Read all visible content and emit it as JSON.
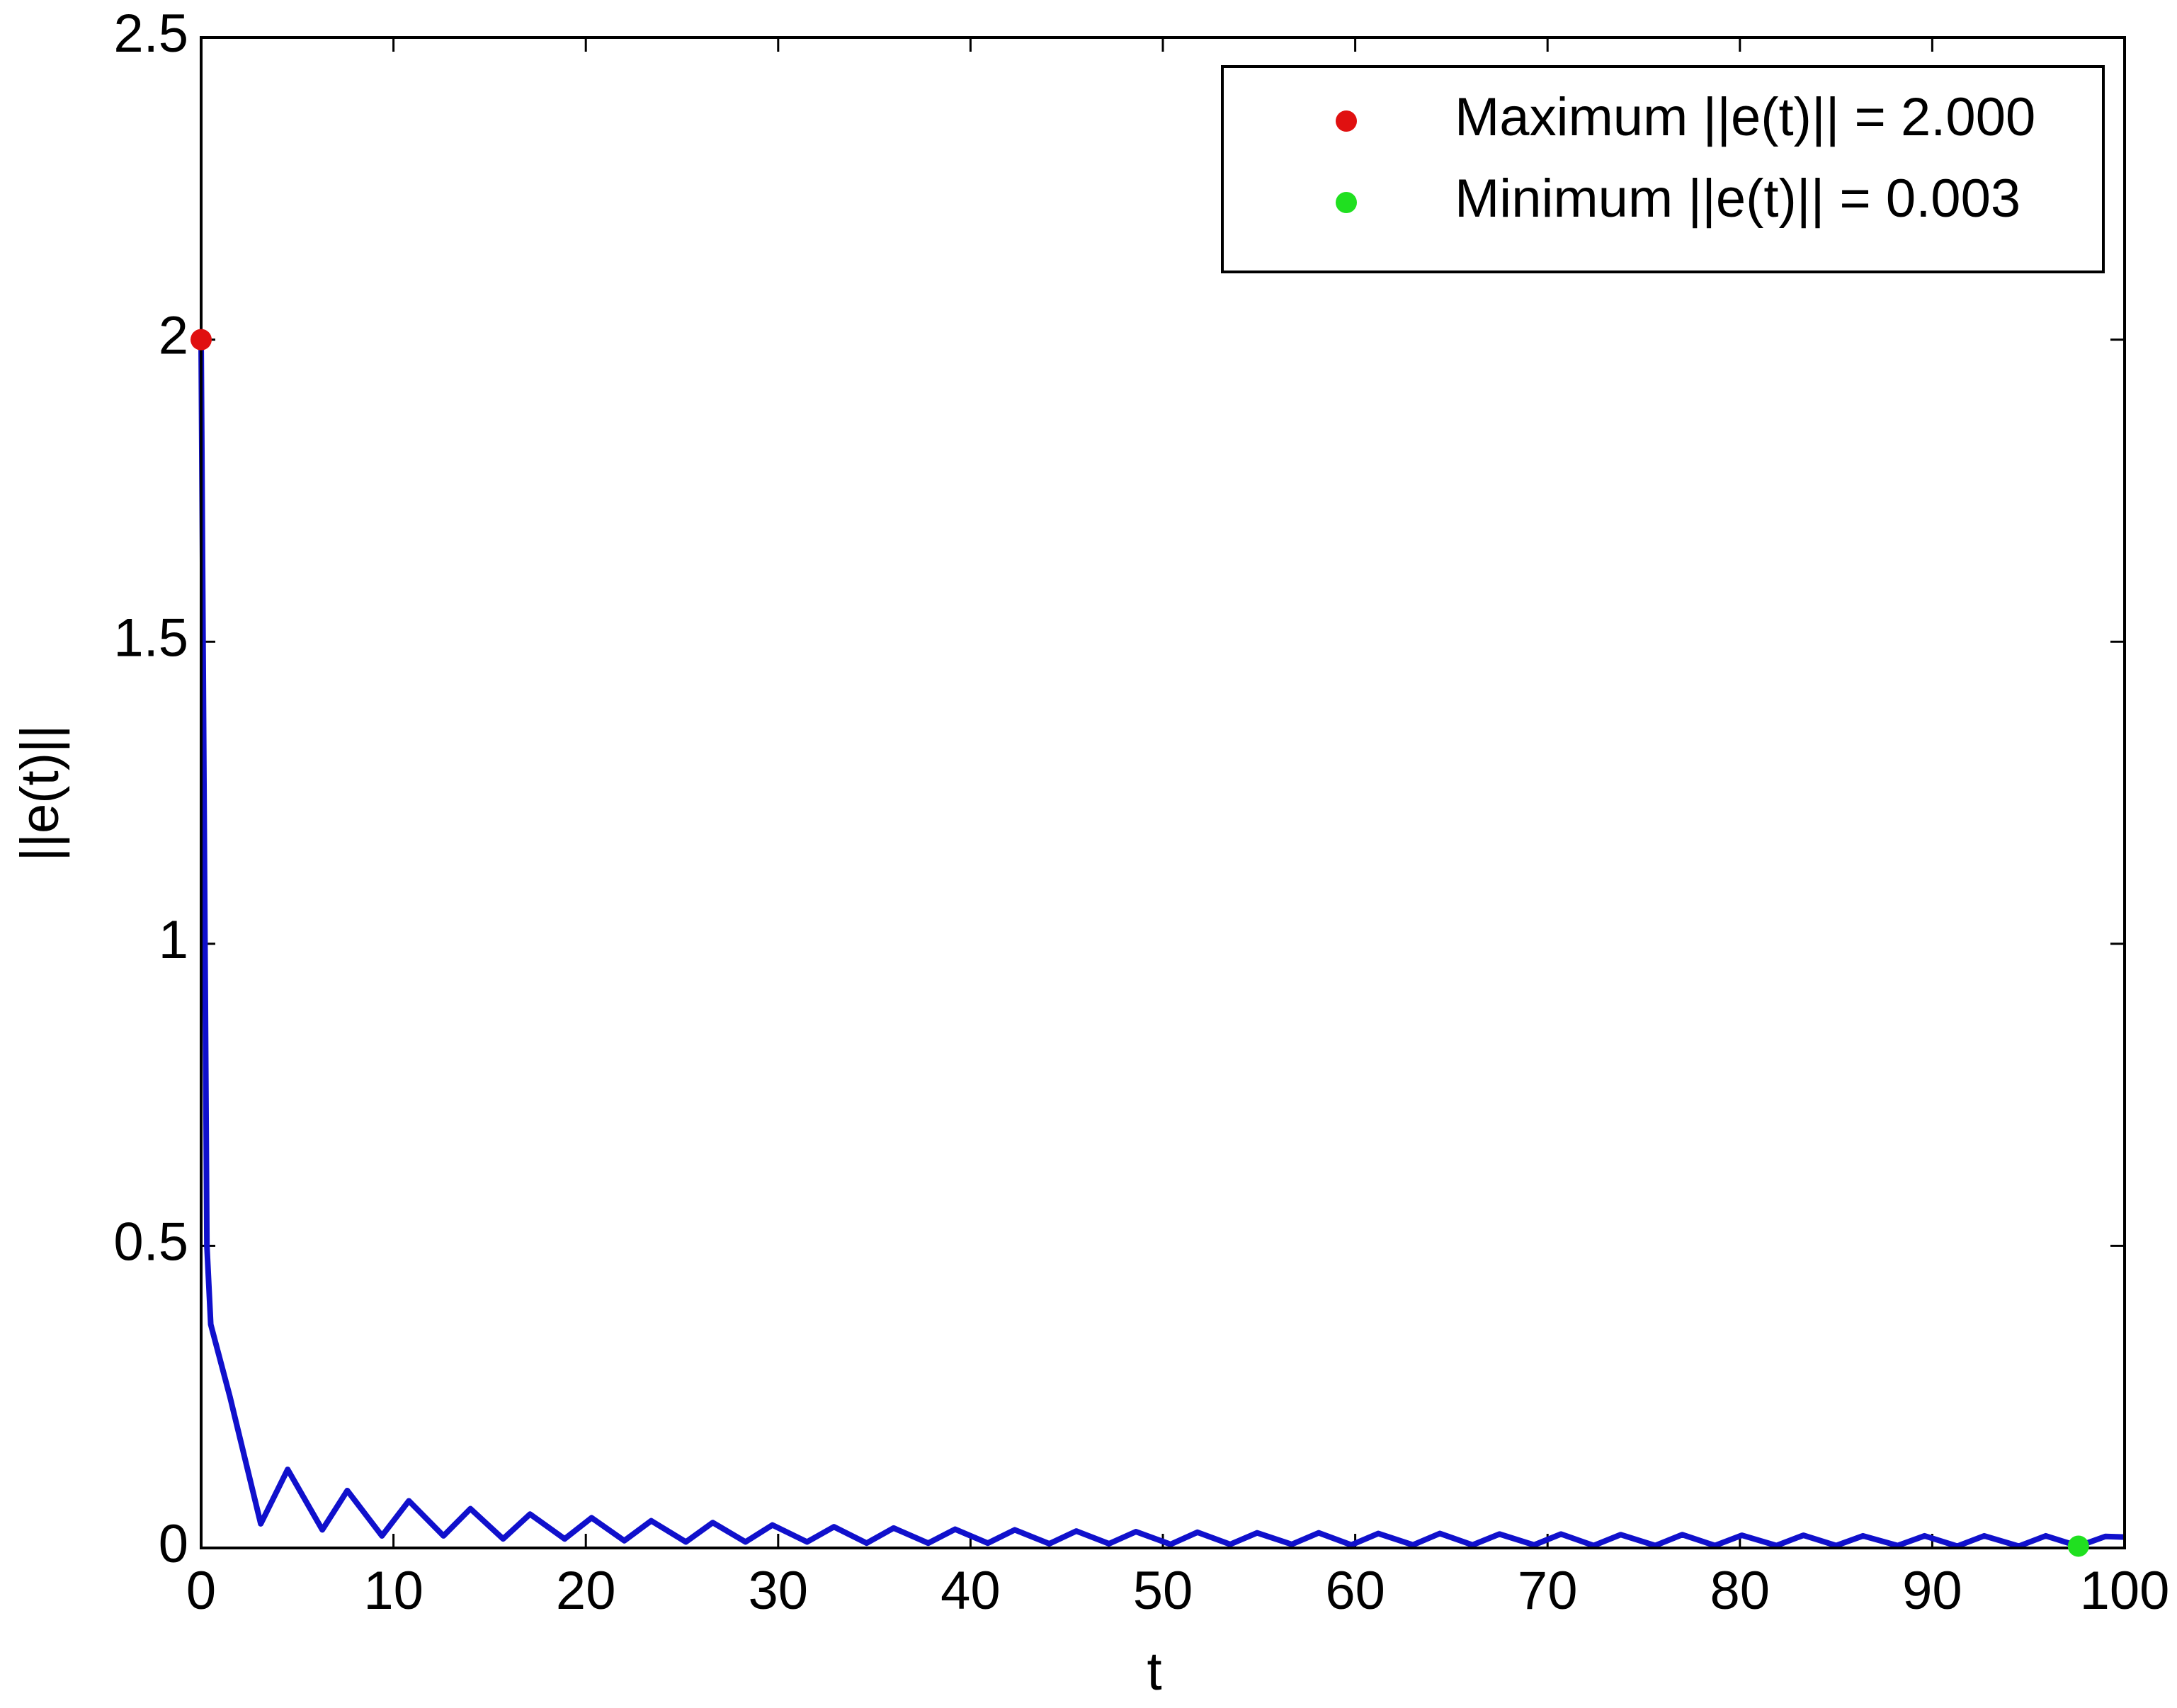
{
  "chart_data": {
    "type": "line",
    "xlabel": "t",
    "ylabel": "||e(t)||",
    "xlim": [
      0,
      100
    ],
    "ylim": [
      0,
      2.5
    ],
    "xticks": [
      0,
      10,
      20,
      30,
      40,
      50,
      60,
      70,
      80,
      90,
      100
    ],
    "yticks": [
      0,
      0.5,
      1,
      1.5,
      2,
      2.5
    ],
    "series": [
      {
        "color": "#1010cc",
        "x": [
          0,
          0.3,
          0.5,
          1.5,
          3.1,
          4.5,
          6.3,
          7.6,
          9.4,
          10.8,
          12.6,
          14.0,
          15.7,
          17.1,
          18.9,
          20.3,
          22.0,
          23.4,
          25.2,
          26.6,
          28.3,
          29.7,
          31.5,
          32.9,
          34.6,
          36.0,
          37.8,
          39.2,
          40.9,
          42.3,
          44.1,
          45.5,
          47.2,
          48.6,
          50.4,
          51.8,
          53.5,
          54.9,
          56.7,
          58.1,
          59.8,
          61.2,
          63.0,
          64.4,
          66.1,
          67.5,
          69.3,
          70.7,
          72.4,
          73.8,
          75.6,
          77.0,
          78.7,
          80.1,
          81.9,
          83.3,
          85.0,
          86.4,
          88.2,
          89.6,
          91.3,
          92.7,
          94.5,
          95.9,
          97.6,
          99.0,
          100
        ],
        "values": [
          2,
          0.5,
          0.37,
          0.25,
          0.04,
          0.13,
          0.03,
          0.095,
          0.02,
          0.078,
          0.02,
          0.065,
          0.015,
          0.056,
          0.015,
          0.05,
          0.012,
          0.045,
          0.01,
          0.042,
          0.01,
          0.038,
          0.01,
          0.035,
          0.008,
          0.033,
          0.008,
          0.031,
          0.008,
          0.03,
          0.007,
          0.028,
          0.007,
          0.027,
          0.006,
          0.026,
          0.006,
          0.025,
          0.006,
          0.025,
          0.005,
          0.024,
          0.005,
          0.024,
          0.005,
          0.023,
          0.005,
          0.023,
          0.004,
          0.022,
          0.004,
          0.022,
          0.004,
          0.021,
          0.004,
          0.021,
          0.004,
          0.02,
          0.004,
          0.02,
          0.003,
          0.02,
          0.003,
          0.02,
          0.003,
          0.019,
          0.018
        ]
      }
    ],
    "points": [
      {
        "name": "Maximum ||e(t)|| = 2.000",
        "color": "#e01010",
        "x": [
          0
        ],
        "values": [
          2
        ]
      },
      {
        "name": "Minimum ||e(t)|| = 0.003",
        "color": "#20e020",
        "x": [
          97.6
        ],
        "values": [
          0.003
        ]
      }
    ]
  }
}
